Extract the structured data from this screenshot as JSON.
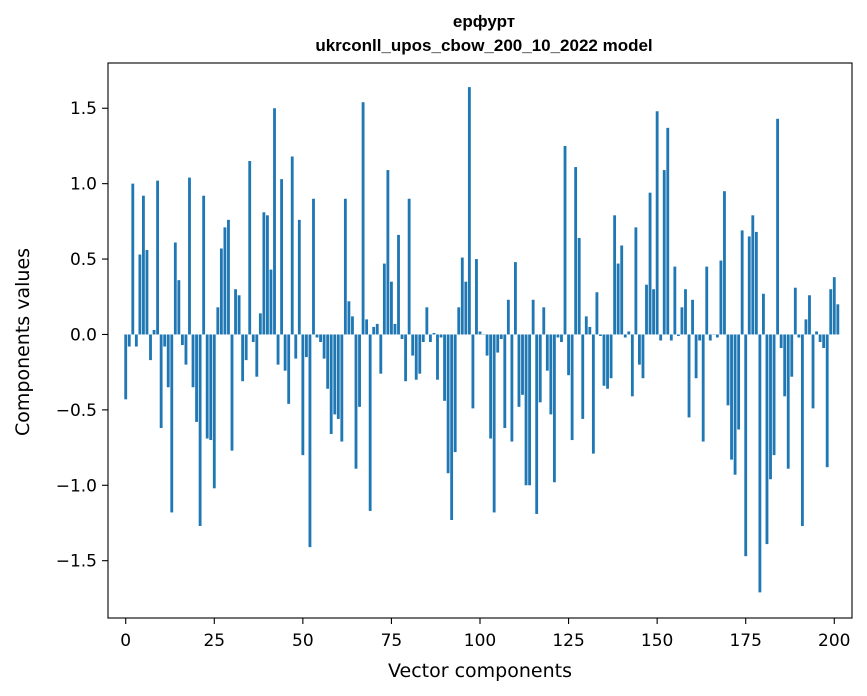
{
  "chart_data": {
    "type": "bar",
    "title": "ерфурт",
    "subtitle": "ukrconll_upos_cbow_200_10_2022 model",
    "xlabel": "Vector components",
    "ylabel": "Components values",
    "xlim": [
      -5,
      205
    ],
    "ylim": [
      -1.88,
      1.8
    ],
    "xticks": [
      0,
      25,
      50,
      75,
      100,
      125,
      150,
      175,
      200
    ],
    "yticks": [
      -1.5,
      -1.0,
      -0.5,
      0.0,
      0.5,
      1.0,
      1.5
    ],
    "ytick_labels": [
      "−1.5",
      "−1.0",
      "−0.5",
      "0.0",
      "0.5",
      "1.0",
      "1.5"
    ],
    "bar_color": "#1f77b4",
    "series": [
      {
        "name": "components",
        "values": [
          -0.43,
          -0.08,
          1.0,
          -0.08,
          0.53,
          0.92,
          0.56,
          -0.17,
          0.03,
          1.02,
          -0.62,
          -0.08,
          -0.35,
          -1.18,
          0.61,
          0.36,
          -0.07,
          -0.2,
          1.04,
          -0.35,
          -0.58,
          -1.27,
          0.92,
          -0.69,
          -0.7,
          -1.02,
          0.18,
          0.57,
          0.71,
          0.76,
          -0.77,
          0.3,
          0.26,
          -0.31,
          -0.17,
          1.15,
          -0.05,
          -0.28,
          0.14,
          0.81,
          0.79,
          0.43,
          1.5,
          -0.2,
          1.03,
          -0.24,
          -0.46,
          1.18,
          -0.16,
          0.76,
          -0.8,
          -0.15,
          -1.41,
          0.9,
          -0.02,
          -0.05,
          -0.16,
          -0.36,
          -0.66,
          -0.53,
          -0.56,
          -0.71,
          0.9,
          0.22,
          0.12,
          -0.89,
          -0.48,
          1.54,
          0.1,
          -1.17,
          0.05,
          0.07,
          -0.26,
          0.47,
          1.09,
          0.35,
          0.07,
          0.66,
          -0.03,
          -0.31,
          0.9,
          -0.14,
          -0.3,
          -0.26,
          -0.05,
          0.18,
          -0.05,
          0.01,
          -0.3,
          -0.02,
          -0.44,
          -0.92,
          -1.23,
          -0.78,
          0.18,
          0.51,
          0.35,
          1.64,
          -0.49,
          0.5,
          0.02,
          0.0,
          -0.14,
          -0.69,
          -1.18,
          -0.12,
          -0.03,
          -0.62,
          0.23,
          -0.71,
          0.48,
          -0.48,
          -0.4,
          -1.0,
          -1.0,
          0.23,
          -1.19,
          -0.45,
          0.18,
          -0.24,
          -0.53,
          -0.98,
          -0.02,
          -0.05,
          1.25,
          -0.27,
          -0.7,
          1.11,
          0.64,
          -0.56,
          0.12,
          0.05,
          -0.79,
          0.28,
          -0.01,
          -0.34,
          -0.36,
          -0.29,
          0.79,
          0.47,
          0.59,
          -0.02,
          0.02,
          -0.41,
          0.71,
          -0.2,
          -0.29,
          0.33,
          0.94,
          0.3,
          1.48,
          -0.04,
          1.09,
          1.37,
          -0.04,
          0.45,
          -0.01,
          0.18,
          0.3,
          -0.55,
          0.23,
          -0.29,
          -0.04,
          -0.71,
          0.45,
          -0.04,
          0.0,
          -0.02,
          0.49,
          0.95,
          -0.47,
          -0.83,
          -0.93,
          -0.63,
          0.69,
          -1.47,
          0.65,
          0.79,
          0.68,
          -1.71,
          0.27,
          -1.39,
          -0.96,
          -0.8,
          1.43,
          -0.09,
          -0.41,
          -0.89,
          -0.28,
          0.31,
          -0.02,
          -1.27,
          0.1,
          0.26,
          -0.49,
          0.02,
          -0.05,
          -0.09,
          -0.88,
          0.3,
          0.38,
          0.2
        ]
      }
    ]
  }
}
